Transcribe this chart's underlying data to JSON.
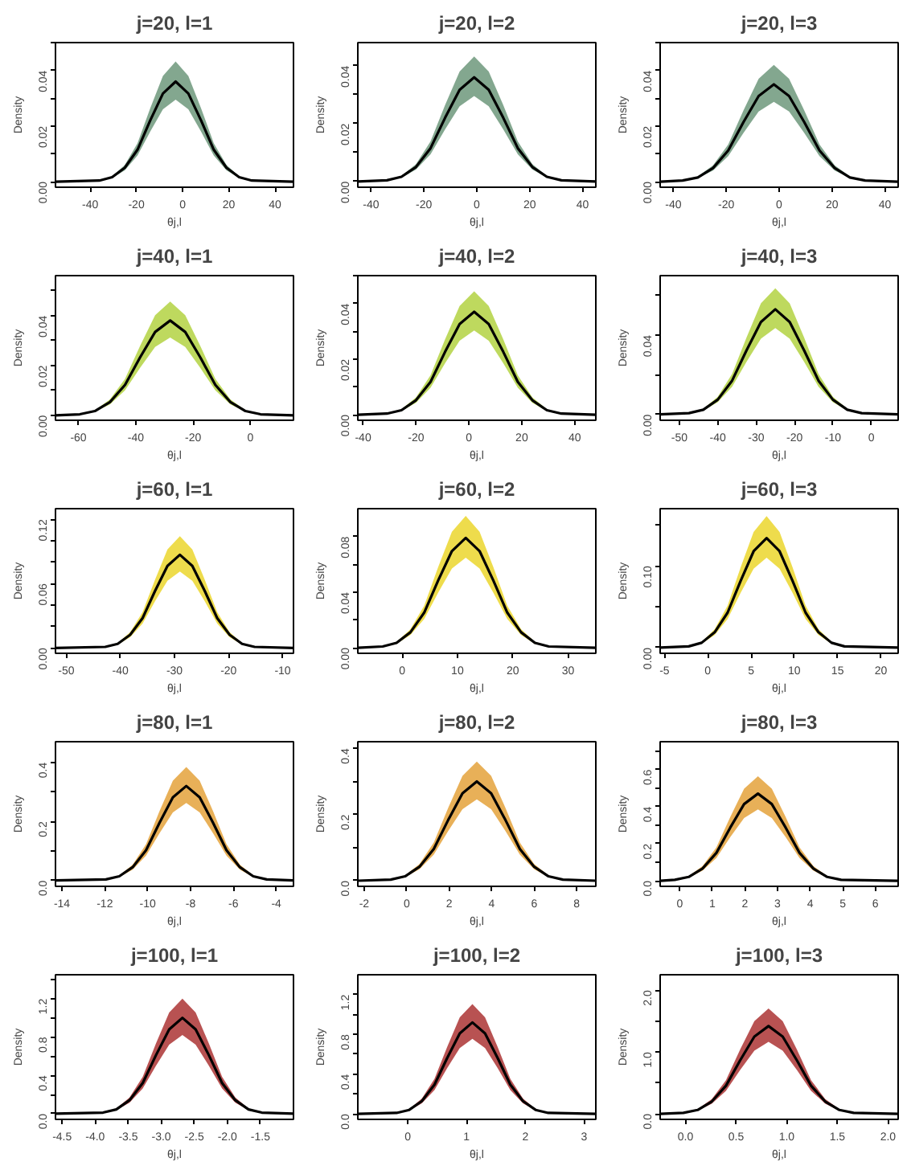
{
  "chart_data": [
    {
      "type": "line",
      "title": "j=20, l=1",
      "xlabel": "θj,l",
      "ylabel": "Density",
      "xlim": [
        -55,
        48
      ],
      "xticks": [
        -40,
        -20,
        0,
        20,
        40
      ],
      "ylim": [
        -0.002,
        0.05
      ],
      "yticks": [
        {
          "value": 0,
          "label": "0.00"
        },
        {
          "value": 0.01,
          "label": null
        },
        {
          "value": 0.02,
          "label": "0.02"
        },
        {
          "value": 0.03,
          "label": null
        },
        {
          "value": 0.04,
          "label": "0.04"
        },
        {
          "value": 0.05,
          "label": null
        }
      ],
      "x": [
        -55,
        -36,
        -30.5,
        -25,
        -19.5,
        -14,
        -8.5,
        -3,
        2.5,
        8,
        13.5,
        19,
        24.5,
        30,
        48
      ],
      "colors": [
        "#5a8a6a"
      ],
      "series": [
        {
          "color": "#000000",
          "values": [
            0,
            0.0004,
            0.0016,
            0.005,
            0.0115,
            0.022,
            0.0317,
            0.036,
            0.0317,
            0.022,
            0.0115,
            0.005,
            0.0016,
            0.0004,
            0
          ],
          "lower": [
            0,
            0.0003,
            0.0013,
            0.0041,
            0.0094,
            0.018,
            0.026,
            0.0295,
            0.026,
            0.018,
            0.0094,
            0.0041,
            0.0013,
            0.0003,
            0
          ],
          "upper": [
            0,
            0.0005,
            0.0019,
            0.006,
            0.0138,
            0.0264,
            0.038,
            0.0432,
            0.038,
            0.0264,
            0.0138,
            0.006,
            0.0019,
            0.0005,
            0
          ]
        }
      ]
    },
    {
      "type": "line",
      "title": "j=20, l=2",
      "xlabel": "θj,l",
      "ylabel": "Density",
      "xlim": [
        -45,
        45
      ],
      "xticks": [
        -40,
        -20,
        0,
        20,
        40
      ],
      "ylim": [
        -0.002,
        0.048
      ],
      "yticks": [
        {
          "value": 0,
          "label": "0.00"
        },
        {
          "value": 0.01,
          "label": null
        },
        {
          "value": 0.02,
          "label": "0.02"
        },
        {
          "value": 0.03,
          "label": null
        },
        {
          "value": 0.04,
          "label": "0.04"
        }
      ],
      "x": [
        -45,
        -34,
        -28.5,
        -23,
        -17.5,
        -12,
        -6.5,
        -1,
        4.5,
        10,
        15.5,
        21,
        26.5,
        32,
        45
      ],
      "colors": [
        "#5a8a6a"
      ],
      "series": [
        {
          "color": "#000000",
          "values": [
            0,
            0.0004,
            0.0016,
            0.005,
            0.0115,
            0.022,
            0.0317,
            0.036,
            0.0317,
            0.022,
            0.0115,
            0.005,
            0.0016,
            0.0004,
            0
          ],
          "lower": [
            0,
            0.0003,
            0.0013,
            0.0041,
            0.0094,
            0.018,
            0.026,
            0.0295,
            0.026,
            0.018,
            0.0094,
            0.0041,
            0.0013,
            0.0003,
            0
          ],
          "upper": [
            0,
            0.0005,
            0.0019,
            0.006,
            0.0138,
            0.0264,
            0.038,
            0.0432,
            0.038,
            0.0264,
            0.0138,
            0.006,
            0.0019,
            0.0005,
            0
          ]
        }
      ]
    },
    {
      "type": "line",
      "title": "j=20, l=3",
      "xlabel": "θj,l",
      "ylabel": "Density",
      "xlim": [
        -45,
        45
      ],
      "xticks": [
        -40,
        -20,
        0,
        20,
        40
      ],
      "ylim": [
        -0.002,
        0.05
      ],
      "yticks": [
        {
          "value": 0,
          "label": "0.00"
        },
        {
          "value": 0.01,
          "label": null
        },
        {
          "value": 0.02,
          "label": "0.02"
        },
        {
          "value": 0.03,
          "label": null
        },
        {
          "value": 0.04,
          "label": "0.04"
        },
        {
          "value": 0.05,
          "label": null
        }
      ],
      "x": [
        -45,
        -36.5,
        -30.75,
        -25,
        -19.25,
        -13.5,
        -7.75,
        -2,
        3.75,
        9.5,
        15.25,
        21,
        26.75,
        32.5,
        45
      ],
      "colors": [
        "#5a8a6a"
      ],
      "series": [
        {
          "color": "#000000",
          "values": [
            0,
            0.0004,
            0.0015,
            0.0049,
            0.0112,
            0.0214,
            0.0308,
            0.035,
            0.0308,
            0.0214,
            0.0112,
            0.0049,
            0.0015,
            0.0004,
            0
          ],
          "lower": [
            0,
            0.0003,
            0.0013,
            0.004,
            0.0092,
            0.0175,
            0.0252,
            0.0287,
            0.0252,
            0.0175,
            0.0092,
            0.004,
            0.0013,
            0.0003,
            0
          ],
          "upper": [
            0,
            0.0005,
            0.0019,
            0.0059,
            0.0134,
            0.0256,
            0.037,
            0.042,
            0.037,
            0.0256,
            0.0134,
            0.0059,
            0.0019,
            0.0005,
            0
          ]
        }
      ]
    },
    {
      "type": "line",
      "title": "j=40, l=1",
      "xlabel": "θj,l",
      "ylabel": "Density",
      "xlim": [
        -68,
        15
      ],
      "xticks": [
        -60,
        -40,
        -20,
        0
      ],
      "ylim": [
        -0.002,
        0.056
      ],
      "yticks": [
        {
          "value": 0,
          "label": "0.00"
        },
        {
          "value": 0.01,
          "label": null
        },
        {
          "value": 0.02,
          "label": "0.02"
        },
        {
          "value": 0.03,
          "label": null
        },
        {
          "value": 0.04,
          "label": "0.04"
        },
        {
          "value": 0.05,
          "label": null
        }
      ],
      "x": [
        -68,
        -59.5,
        -54.25,
        -49,
        -43.75,
        -38.5,
        -33.25,
        -28,
        -22.75,
        -17.5,
        -12.25,
        -7,
        -1.75,
        3.5,
        15
      ],
      "colors": [
        "#a8cc28"
      ],
      "series": [
        {
          "color": "#000000",
          "values": [
            0,
            0.0004,
            0.0017,
            0.0053,
            0.0122,
            0.0232,
            0.0334,
            0.038,
            0.0334,
            0.0232,
            0.0122,
            0.0053,
            0.0017,
            0.0004,
            0
          ],
          "lower": [
            0,
            0.0003,
            0.0014,
            0.0044,
            0.01,
            0.019,
            0.0274,
            0.0312,
            0.0274,
            0.019,
            0.01,
            0.0044,
            0.0014,
            0.0003,
            0
          ],
          "upper": [
            0,
            0.0005,
            0.002,
            0.0064,
            0.0146,
            0.0278,
            0.0401,
            0.0456,
            0.0401,
            0.0278,
            0.0146,
            0.0064,
            0.002,
            0.0005,
            0
          ]
        }
      ]
    },
    {
      "type": "line",
      "title": "j=40, l=2",
      "xlabel": "θj,l",
      "ylabel": "Density",
      "xlim": [
        -42,
        48
      ],
      "xticks": [
        -40,
        -20,
        0,
        20,
        40
      ],
      "ylim": [
        -0.002,
        0.05
      ],
      "yticks": [
        {
          "value": 0,
          "label": "0.00"
        },
        {
          "value": 0.01,
          "label": null
        },
        {
          "value": 0.02,
          "label": "0.02"
        },
        {
          "value": 0.03,
          "label": null
        },
        {
          "value": 0.04,
          "label": "0.04"
        },
        {
          "value": 0.05,
          "label": null
        }
      ],
      "x": [
        -42,
        -31,
        -25.5,
        -20,
        -14.5,
        -9,
        -3.5,
        2,
        7.5,
        13,
        18.5,
        24,
        29.5,
        35,
        48
      ],
      "colors": [
        "#a8cc28"
      ],
      "series": [
        {
          "color": "#000000",
          "values": [
            0,
            0.0004,
            0.0016,
            0.0052,
            0.0118,
            0.0226,
            0.0326,
            0.037,
            0.0326,
            0.0226,
            0.0118,
            0.0052,
            0.0016,
            0.0004,
            0
          ],
          "lower": [
            0,
            0.0003,
            0.0013,
            0.0043,
            0.0097,
            0.0185,
            0.0266,
            0.0303,
            0.0266,
            0.0185,
            0.0097,
            0.0043,
            0.0013,
            0.0003,
            0
          ],
          "upper": [
            0,
            0.0005,
            0.002,
            0.0062,
            0.0142,
            0.0271,
            0.0391,
            0.0444,
            0.0391,
            0.0271,
            0.0142,
            0.0062,
            0.002,
            0.0005,
            0
          ]
        }
      ]
    },
    {
      "type": "line",
      "title": "j=40, l=3",
      "xlabel": "θj,l",
      "ylabel": "Density",
      "xlim": [
        -55,
        7
      ],
      "xticks": [
        -50,
        -40,
        -30,
        -20,
        -10,
        0
      ],
      "ylim": [
        -0.003,
        0.07
      ],
      "yticks": [
        {
          "value": 0,
          "label": "0.00"
        },
        {
          "value": 0.02,
          "label": null
        },
        {
          "value": 0.04,
          "label": "0.04"
        },
        {
          "value": 0.06,
          "label": null
        }
      ],
      "x": [
        -55,
        -47.5,
        -43.75,
        -40,
        -36.25,
        -32.5,
        -28.75,
        -25,
        -21.25,
        -17.5,
        -13.75,
        -10,
        -6.25,
        -2.5,
        7
      ],
      "colors": [
        "#a8cc28"
      ],
      "series": [
        {
          "color": "#000000",
          "values": [
            0,
            0.0006,
            0.0023,
            0.0074,
            0.017,
            0.0323,
            0.0466,
            0.053,
            0.0466,
            0.0323,
            0.017,
            0.0074,
            0.0023,
            0.0006,
            0
          ],
          "lower": [
            0,
            0.0005,
            0.0019,
            0.0061,
            0.0139,
            0.0265,
            0.0382,
            0.0435,
            0.0382,
            0.0265,
            0.0139,
            0.0061,
            0.0019,
            0.0005,
            0
          ],
          "upper": [
            0,
            0.0007,
            0.0028,
            0.0089,
            0.0204,
            0.0388,
            0.056,
            0.0636,
            0.056,
            0.0388,
            0.0204,
            0.0089,
            0.0028,
            0.0007,
            0
          ]
        }
      ]
    },
    {
      "type": "line",
      "title": "j=60, l=1",
      "xlabel": "θj,l",
      "ylabel": "Density",
      "xlim": [
        -52,
        -8
      ],
      "xticks": [
        -50,
        -40,
        -30,
        -20,
        -10
      ],
      "ylim": [
        -0.005,
        0.13
      ],
      "yticks": [
        {
          "value": 0,
          "label": "0.00"
        },
        {
          "value": 0.02,
          "label": null
        },
        {
          "value": 0.04,
          "label": null
        },
        {
          "value": 0.06,
          "label": "0.06"
        },
        {
          "value": 0.08,
          "label": null
        },
        {
          "value": 0.1,
          "label": null
        },
        {
          "value": 0.12,
          "label": "0.12"
        }
      ],
      "x": [
        -52,
        -42.8,
        -40.5,
        -38.2,
        -35.9,
        -33.6,
        -31.3,
        -29,
        -26.7,
        -24.4,
        -22.1,
        -19.8,
        -17.5,
        -15.2,
        -8
      ],
      "colors": [
        "#e8d010"
      ],
      "series": [
        {
          "color": "#000000",
          "values": [
            0,
            0.001,
            0.0038,
            0.0122,
            0.0278,
            0.0531,
            0.0766,
            0.087,
            0.0766,
            0.0531,
            0.0278,
            0.0122,
            0.0038,
            0.001,
            0
          ],
          "lower": [
            0,
            0.0008,
            0.0031,
            0.01,
            0.0228,
            0.0435,
            0.0626,
            0.0713,
            0.0626,
            0.0435,
            0.0228,
            0.01,
            0.0031,
            0.0008,
            0
          ],
          "upper": [
            0,
            0.0011,
            0.0046,
            0.0146,
            0.0334,
            0.0637,
            0.0919,
            0.1044,
            0.0919,
            0.0637,
            0.0334,
            0.0146,
            0.0046,
            0.0011,
            0
          ]
        }
      ]
    },
    {
      "type": "line",
      "title": "j=60, l=2",
      "xlabel": "θj,l",
      "ylabel": "Density",
      "xlim": [
        -8,
        35
      ],
      "xticks": [
        0,
        10,
        20,
        30
      ],
      "ylim": [
        -0.004,
        0.1
      ],
      "yticks": [
        {
          "value": 0,
          "label": "0.00"
        },
        {
          "value": 0.02,
          "label": null
        },
        {
          "value": 0.04,
          "label": "0.04"
        },
        {
          "value": 0.06,
          "label": null
        },
        {
          "value": 0.08,
          "label": "0.08"
        }
      ],
      "x": [
        -8,
        -3.5,
        -1,
        1.5,
        4,
        6.5,
        9,
        11.5,
        14,
        16.5,
        19,
        21.5,
        24,
        26.5,
        35
      ],
      "colors": [
        "#e8d010"
      ],
      "series": [
        {
          "color": "#000000",
          "values": [
            0,
            0.0009,
            0.0035,
            0.0111,
            0.0253,
            0.0482,
            0.0695,
            0.079,
            0.0695,
            0.0482,
            0.0253,
            0.0111,
            0.0035,
            0.0009,
            0
          ],
          "lower": [
            0,
            0.0007,
            0.0028,
            0.0091,
            0.0207,
            0.0395,
            0.0569,
            0.0648,
            0.0569,
            0.0395,
            0.0207,
            0.0091,
            0.0028,
            0.0007,
            0
          ],
          "upper": [
            0,
            0.001,
            0.0042,
            0.0133,
            0.0303,
            0.0578,
            0.0834,
            0.0948,
            0.0834,
            0.0578,
            0.0303,
            0.0133,
            0.0042,
            0.001,
            0
          ]
        }
      ]
    },
    {
      "type": "line",
      "title": "j=60, l=3",
      "xlabel": "θj,l",
      "ylabel": "Density",
      "xlim": [
        -5.5,
        22
      ],
      "xticks": [
        -5,
        0,
        5,
        10,
        15,
        20
      ],
      "ylim": [
        -0.007,
        0.17
      ],
      "yticks": [
        {
          "value": 0,
          "label": "0.00"
        },
        {
          "value": 0.05,
          "label": null
        },
        {
          "value": 0.1,
          "label": "0.10"
        },
        {
          "value": 0.15,
          "label": null
        }
      ],
      "x": [
        -5.5,
        -2.2,
        -0.7,
        0.8,
        2.3,
        3.8,
        5.3,
        6.8,
        8.3,
        9.8,
        11.3,
        12.8,
        14.3,
        15.8,
        22
      ],
      "colors": [
        "#e8d010"
      ],
      "series": [
        {
          "color": "#000000",
          "values": [
            0,
            0.0015,
            0.0059,
            0.0188,
            0.0429,
            0.0817,
            0.1179,
            0.134,
            0.1179,
            0.0817,
            0.0429,
            0.0188,
            0.0059,
            0.0015,
            0
          ],
          "lower": [
            0,
            0.0012,
            0.0048,
            0.0154,
            0.0351,
            0.067,
            0.0965,
            0.1099,
            0.0965,
            0.067,
            0.0351,
            0.0154,
            0.0048,
            0.0012,
            0
          ],
          "upper": [
            0,
            0.0017,
            0.0071,
            0.0225,
            0.0515,
            0.0981,
            0.1415,
            0.1608,
            0.1415,
            0.0981,
            0.0515,
            0.0225,
            0.0071,
            0.0017,
            0
          ]
        }
      ]
    },
    {
      "type": "line",
      "title": "j=80, l=1",
      "xlabel": "θj,l",
      "ylabel": "Density",
      "xlim": [
        -14.3,
        -3.2
      ],
      "xticks": [
        -14,
        -12,
        -10,
        -8,
        -6,
        -4
      ],
      "ylim": [
        -0.02,
        0.47
      ],
      "yticks": [
        {
          "value": 0,
          "label": "0.0"
        },
        {
          "value": 0.1,
          "label": null
        },
        {
          "value": 0.2,
          "label": "0.2"
        },
        {
          "value": 0.3,
          "label": null
        },
        {
          "value": 0.4,
          "label": "0.4"
        }
      ],
      "x": [
        -14.3,
        -11.95,
        -11.325,
        -10.7,
        -10.075,
        -9.45,
        -8.825,
        -8.2,
        -7.575,
        -6.95,
        -6.325,
        -5.7,
        -5.075,
        -4.45,
        -3.2
      ],
      "colors": [
        "#e09520"
      ],
      "series": [
        {
          "color": "#000000",
          "values": [
            0,
            0.0035,
            0.0141,
            0.0448,
            0.1024,
            0.1952,
            0.2816,
            0.32,
            0.2816,
            0.1952,
            0.1024,
            0.0448,
            0.0141,
            0.0035,
            0
          ],
          "lower": [
            0,
            0.0029,
            0.0115,
            0.0368,
            0.0838,
            0.16,
            0.2304,
            0.2624,
            0.2304,
            0.16,
            0.0838,
            0.0368,
            0.0115,
            0.0029,
            0
          ],
          "upper": [
            0,
            0.0042,
            0.017,
            0.0538,
            0.1229,
            0.2342,
            0.3379,
            0.384,
            0.3379,
            0.2342,
            0.1229,
            0.0538,
            0.017,
            0.0042,
            0
          ]
        }
      ]
    },
    {
      "type": "line",
      "title": "j=80, l=2",
      "xlabel": "θj,l",
      "ylabel": "Density",
      "xlim": [
        -2.3,
        8.9
      ],
      "xticks": [
        -2,
        0,
        2,
        4,
        6,
        8
      ],
      "ylim": [
        -0.017,
        0.42
      ],
      "yticks": [
        {
          "value": 0,
          "label": "0.0"
        },
        {
          "value": 0.1,
          "label": null
        },
        {
          "value": 0.2,
          "label": "0.2"
        },
        {
          "value": 0.3,
          "label": null
        },
        {
          "value": 0.4,
          "label": "0.4"
        }
      ],
      "x": [
        -2.3,
        -0.75,
        -0.075,
        0.6,
        1.275,
        1.95,
        2.625,
        3.3,
        3.975,
        4.65,
        5.325,
        6,
        6.675,
        7.35,
        8.9
      ],
      "colors": [
        "#e09520"
      ],
      "series": [
        {
          "color": "#000000",
          "values": [
            0,
            0.0033,
            0.0132,
            0.042,
            0.096,
            0.183,
            0.264,
            0.3,
            0.264,
            0.183,
            0.096,
            0.042,
            0.0132,
            0.0033,
            0
          ],
          "lower": [
            0,
            0.0027,
            0.0108,
            0.0345,
            0.0786,
            0.15,
            0.216,
            0.246,
            0.216,
            0.15,
            0.0786,
            0.0345,
            0.0108,
            0.0027,
            0
          ],
          "upper": [
            0,
            0.004,
            0.0159,
            0.0504,
            0.1152,
            0.2196,
            0.3168,
            0.36,
            0.3168,
            0.2196,
            0.1152,
            0.0504,
            0.0159,
            0.004,
            0
          ]
        }
      ]
    },
    {
      "type": "line",
      "title": "j=80, l=3",
      "xlabel": "θj,l",
      "ylabel": "Density",
      "xlim": [
        -0.6,
        6.7
      ],
      "xticks": [
        0,
        1,
        2,
        3,
        4,
        5,
        6
      ],
      "ylim": [
        -0.03,
        0.75
      ],
      "yticks": [
        {
          "value": 0,
          "label": "0.0"
        },
        {
          "value": 0.1,
          "label": null
        },
        {
          "value": 0.2,
          "label": "0.2"
        },
        {
          "value": 0.3,
          "label": null
        },
        {
          "value": 0.4,
          "label": "0.4"
        },
        {
          "value": 0.5,
          "label": null
        },
        {
          "value": 0.6,
          "label": "0.6"
        },
        {
          "value": 0.7,
          "label": null
        }
      ],
      "x": [
        -0.6,
        -0.15,
        0.275,
        0.7,
        1.125,
        1.55,
        1.975,
        2.4,
        2.825,
        3.25,
        3.675,
        4.1,
        4.525,
        4.95,
        6.7
      ],
      "colors": [
        "#e09520"
      ],
      "series": [
        {
          "color": "#000000",
          "values": [
            0,
            0.0052,
            0.0207,
            0.0658,
            0.1504,
            0.2867,
            0.4136,
            0.47,
            0.4136,
            0.2867,
            0.1504,
            0.0658,
            0.0207,
            0.0052,
            0
          ],
          "lower": [
            0,
            0.0042,
            0.0169,
            0.0541,
            0.1231,
            0.235,
            0.3384,
            0.3854,
            0.3384,
            0.235,
            0.1231,
            0.0541,
            0.0169,
            0.0042,
            0
          ],
          "upper": [
            0,
            0.0061,
            0.0249,
            0.079,
            0.1805,
            0.344,
            0.4963,
            0.564,
            0.4963,
            0.344,
            0.1805,
            0.079,
            0.0249,
            0.0061,
            0
          ]
        }
      ]
    },
    {
      "type": "line",
      "title": "j=100, l=1",
      "xlabel": "θj,l",
      "ylabel": "Density",
      "xlim": [
        -4.6,
        -1.0
      ],
      "xticks": [
        -4.5,
        {
          "value": -4,
          "label": "-4.0"
        },
        -3.5,
        {
          "value": -3,
          "label": "-3.0"
        },
        -2.5,
        {
          "value": -2,
          "label": "-2.0"
        },
        -1.5
      ],
      "ylim": [
        -0.06,
        1.45
      ],
      "yticks": [
        {
          "value": 0,
          "label": "0.0"
        },
        {
          "value": 0.2,
          "label": null
        },
        {
          "value": 0.4,
          "label": "0.4"
        },
        {
          "value": 0.6,
          "label": null
        },
        {
          "value": 0.8,
          "label": "0.8"
        },
        {
          "value": 1.0,
          "label": null
        },
        {
          "value": 1.2,
          "label": "1.2"
        },
        {
          "value": 1.4,
          "label": null
        }
      ],
      "x": [
        -4.6,
        -3.88,
        -3.68,
        -3.48,
        -3.28,
        -3.08,
        -2.88,
        -2.68,
        -2.48,
        -2.28,
        -2.08,
        -1.88,
        -1.68,
        -1.48,
        -1.0
      ],
      "colors": [
        "#a01818"
      ],
      "series": [
        {
          "color": "#000000",
          "values": [
            0,
            0.011,
            0.044,
            0.14,
            0.32,
            0.61,
            0.88,
            1.0,
            0.88,
            0.61,
            0.32,
            0.14,
            0.044,
            0.011,
            0
          ],
          "lower": [
            0,
            0.009,
            0.036,
            0.115,
            0.262,
            0.5,
            0.72,
            0.82,
            0.72,
            0.5,
            0.262,
            0.115,
            0.036,
            0.009,
            0
          ],
          "upper": [
            0,
            0.013,
            0.053,
            0.168,
            0.384,
            0.732,
            1.056,
            1.2,
            1.056,
            0.732,
            0.384,
            0.168,
            0.053,
            0.013,
            0
          ]
        }
      ]
    },
    {
      "type": "line",
      "title": "j=100, l=2",
      "xlabel": "θj,l",
      "ylabel": "Density",
      "xlim": [
        -0.85,
        3.2
      ],
      "xticks": [
        0,
        1,
        2,
        3
      ],
      "ylim": [
        -0.055,
        1.4
      ],
      "yticks": [
        {
          "value": 0,
          "label": "0.0"
        },
        {
          "value": 0.2,
          "label": null
        },
        {
          "value": 0.4,
          "label": "0.4"
        },
        {
          "value": 0.6,
          "label": null
        },
        {
          "value": 0.8,
          "label": "0.8"
        },
        {
          "value": 1.0,
          "label": null
        },
        {
          "value": 1.2,
          "label": "1.2"
        }
      ],
      "x": [
        -0.85,
        -0.19,
        0.025,
        0.24,
        0.455,
        0.67,
        0.885,
        1.1,
        1.315,
        1.53,
        1.745,
        1.96,
        2.175,
        2.39,
        3.2
      ],
      "colors": [
        "#a01818"
      ],
      "series": [
        {
          "color": "#000000",
          "values": [
            0,
            0.0101,
            0.0405,
            0.1288,
            0.2944,
            0.5612,
            0.8096,
            0.92,
            0.8096,
            0.5612,
            0.2944,
            0.1288,
            0.0405,
            0.0101,
            0
          ],
          "lower": [
            0,
            0.0083,
            0.0331,
            0.1058,
            0.241,
            0.46,
            0.6624,
            0.7544,
            0.6624,
            0.46,
            0.241,
            0.1058,
            0.0331,
            0.0083,
            0
          ],
          "upper": [
            0,
            0.0121,
            0.0488,
            0.1546,
            0.3533,
            0.6734,
            0.9715,
            1.104,
            0.9715,
            0.6734,
            0.3533,
            0.1546,
            0.0488,
            0.0121,
            0
          ]
        }
      ]
    },
    {
      "type": "line",
      "title": "j=100, l=3",
      "xlabel": "θj,l",
      "ylabel": "Density",
      "xlim": [
        -0.25,
        2.1
      ],
      "xticks": [
        {
          "value": 0,
          "label": "0.0"
        },
        0.5,
        {
          "value": 1,
          "label": "1.0"
        },
        1.5,
        {
          "value": 2,
          "label": "2.0"
        }
      ],
      "ylim": [
        -0.09,
        2.25
      ],
      "yticks": [
        {
          "value": 0,
          "label": "0.0"
        },
        {
          "value": 0.5,
          "label": null
        },
        {
          "value": 1.0,
          "label": "1.0"
        },
        {
          "value": 1.5,
          "label": null
        },
        {
          "value": 2.0,
          "label": "2.0"
        }
      ],
      "x": [
        -0.25,
        -0.02,
        0.12,
        0.26,
        0.4,
        0.54,
        0.68,
        0.82,
        0.96,
        1.1,
        1.24,
        1.38,
        1.52,
        1.66,
        2.1
      ],
      "colors": [
        "#a01818"
      ],
      "series": [
        {
          "color": "#000000",
          "values": [
            0,
            0.0156,
            0.0625,
            0.1988,
            0.4544,
            0.8662,
            1.2496,
            1.42,
            1.2496,
            0.8662,
            0.4544,
            0.1988,
            0.0625,
            0.0156,
            0
          ],
          "lower": [
            0,
            0.0128,
            0.0511,
            0.1633,
            0.3726,
            0.71,
            1.0224,
            1.1644,
            1.0224,
            0.71,
            0.3726,
            0.1633,
            0.0511,
            0.0128,
            0
          ],
          "upper": [
            0,
            0.0187,
            0.075,
            0.2386,
            0.5453,
            1.0394,
            1.4995,
            1.704,
            1.4995,
            1.0394,
            0.5453,
            0.2386,
            0.075,
            0.0187,
            0
          ]
        }
      ]
    }
  ]
}
